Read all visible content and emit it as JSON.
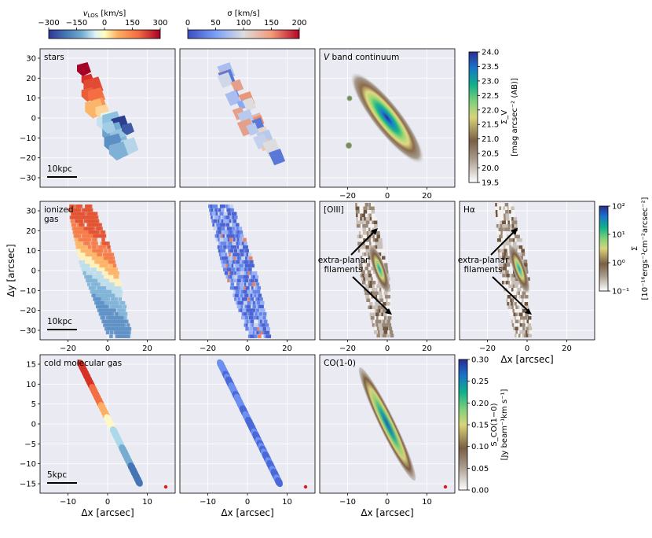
{
  "figure": {
    "top_colorbars": [
      {
        "id": "vlos",
        "label": "v_LOS [km/s]",
        "label_main": "v",
        "label_sub": "LOS",
        "label_unit": " [km/s]",
        "ticks": [
          "−300",
          "−150",
          "0",
          "150",
          "300"
        ],
        "cmap": "rdylbu_r"
      },
      {
        "id": "sigma",
        "label": "σ [km/s]",
        "ticks": [
          "0",
          "50",
          "100",
          "150",
          "200"
        ],
        "cmap": "coolwarm"
      }
    ],
    "right_colorbars": [
      {
        "id": "sigma_v",
        "ticks": [
          "24.0",
          "23.5",
          "23.0",
          "22.5",
          "22.0",
          "21.5",
          "21.0",
          "20.5",
          "20.0",
          "19.5"
        ],
        "label_line1": "Σ_V",
        "label_line2": "[mag arcsec⁻² (AB)]",
        "cmap": "terrain_r"
      },
      {
        "id": "sigma_line",
        "ticks": [
          "10²",
          "10¹",
          "10⁰",
          "10⁻¹"
        ],
        "label_line1": "Σ",
        "label_line2": "[10⁻¹⁶ergs⁻¹cm⁻²arcsec⁻²]",
        "cmap": "terrain_r"
      },
      {
        "id": "sco",
        "ticks": [
          "0.30",
          "0.25",
          "0.20",
          "0.15",
          "0.10",
          "0.05",
          "0.00"
        ],
        "label_line1": "S_CO(1−0)",
        "label_line2": "[Jy beam⁻¹km s⁻¹]",
        "cmap": "terrain_r"
      }
    ],
    "rows": [
      {
        "y_ticks": [
          "30",
          "20",
          "10",
          "0",
          "−10",
          "−20",
          "−30"
        ],
        "panels": [
          {
            "label": "stars",
            "scalebar": "10kpc",
            "kind": "vel_vor"
          },
          {
            "label": "",
            "kind": "disp_vor"
          },
          {
            "label": "V band continuum",
            "label_italic_prefix": "V",
            "label_rest": " band continuum",
            "kind": "image",
            "x_ticks": [
              "−20",
              "0",
              "20"
            ]
          }
        ]
      },
      {
        "y_ticks": [
          "30",
          "20",
          "10",
          "0",
          "−10",
          "−20",
          "−30"
        ],
        "y_label": "Δy [arcsec]",
        "panels": [
          {
            "label": "ionized",
            "label2": "gas",
            "scalebar": "10kpc",
            "kind": "vel_pix",
            "x_ticks": [
              "−20",
              "0",
              "20"
            ]
          },
          {
            "label": "",
            "kind": "disp_pix",
            "x_ticks": [
              "−20",
              "0",
              "20"
            ]
          },
          {
            "label": "[OIII]",
            "kind": "line_img",
            "annotation": [
              "extra-planar",
              "filaments"
            ],
            "x_ticks": [
              "−20",
              "0",
              "20"
            ]
          },
          {
            "label": "Hα",
            "kind": "line_img",
            "annotation": [
              "extra-planar",
              "filaments"
            ],
            "x_ticks": [
              "−20",
              "0",
              "20"
            ],
            "x_label": "Δx [arcsec]"
          }
        ]
      },
      {
        "y_ticks": [
          "15",
          "10",
          "5",
          "0",
          "−5",
          "−10",
          "−15"
        ],
        "panels": [
          {
            "label": "cold molecular gas",
            "scalebar": "5kpc",
            "kind": "co_vel",
            "x_ticks": [
              "−10",
              "0",
              "10"
            ],
            "x_label": "Δx [arcsec]"
          },
          {
            "label": "",
            "kind": "co_disp",
            "x_ticks": [
              "−10",
              "0",
              "10"
            ],
            "x_label": "Δx [arcsec]"
          },
          {
            "label": "CO(1-0)",
            "kind": "co_img",
            "x_ticks": [
              "−10",
              "0",
              "10"
            ],
            "x_label": "Δx [arcsec]"
          }
        ]
      }
    ]
  }
}
